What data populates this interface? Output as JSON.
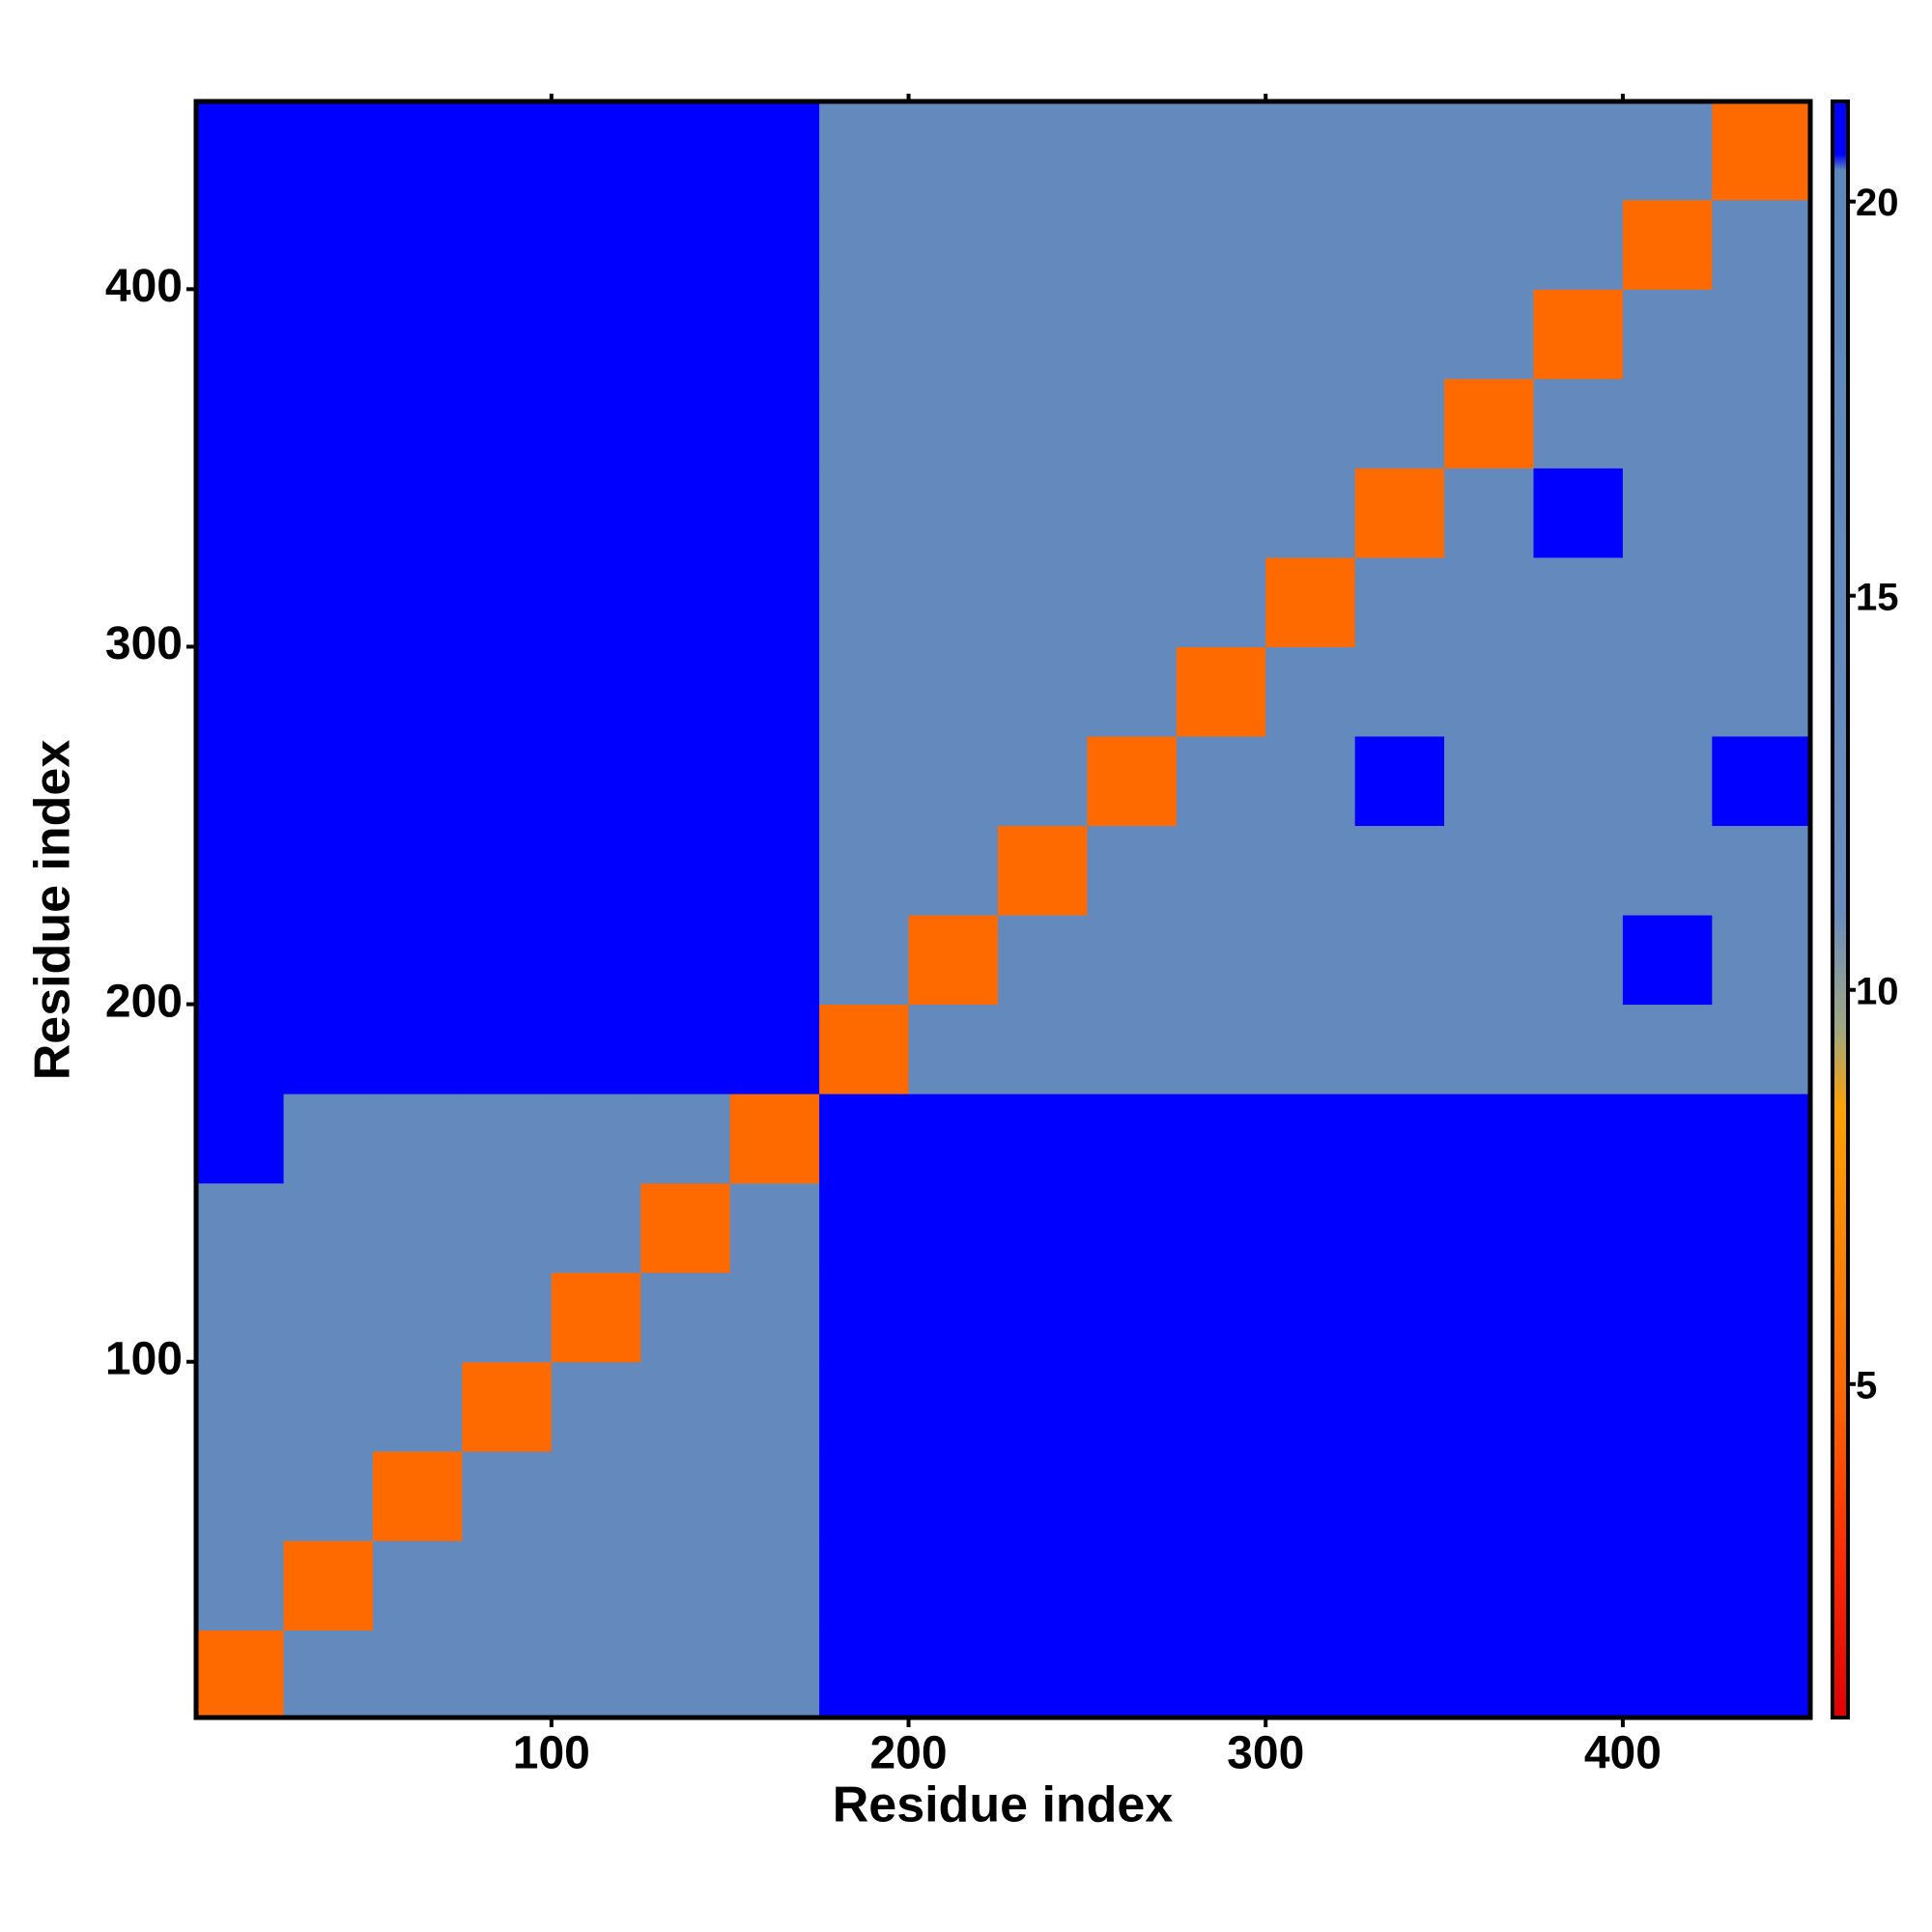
{
  "chart_data": {
    "type": "heatmap",
    "x_label": "Residue index",
    "y_label": "Residue index",
    "xbins": [
      0.5,
      25,
      50,
      75,
      100,
      125,
      150,
      175,
      200,
      225,
      250,
      275,
      300,
      325,
      350,
      375,
      400,
      425,
      452.5
    ],
    "ybins": [
      0.5,
      25,
      50,
      75,
      100,
      125,
      150,
      175,
      200,
      225,
      250,
      275,
      300,
      325,
      350,
      375,
      400,
      425,
      452.5
    ],
    "z": [
      [
        5,
        15,
        15,
        15,
        15,
        15,
        15,
        21,
        21,
        21,
        21,
        21,
        21,
        21,
        21,
        21,
        21,
        21
      ],
      [
        15,
        5,
        15,
        15,
        15,
        15,
        15,
        21,
        21,
        21,
        21,
        21,
        21,
        21,
        21,
        21,
        21,
        21
      ],
      [
        15,
        15,
        5,
        15,
        15,
        15,
        15,
        21,
        21,
        21,
        21,
        21,
        21,
        21,
        21,
        21,
        21,
        21
      ],
      [
        15,
        15,
        15,
        5,
        15,
        15,
        15,
        21,
        21,
        21,
        21,
        21,
        21,
        21,
        21,
        21,
        21,
        21
      ],
      [
        15,
        15,
        15,
        15,
        5,
        15,
        15,
        21,
        21,
        21,
        21,
        21,
        21,
        21,
        21,
        21,
        21,
        21
      ],
      [
        15,
        15,
        15,
        15,
        15,
        5,
        15,
        21,
        21,
        21,
        21,
        21,
        21,
        21,
        21,
        21,
        21,
        21
      ],
      [
        21,
        15,
        15,
        15,
        15,
        15,
        5,
        21,
        21,
        21,
        21,
        21,
        21,
        21,
        21,
        21,
        21,
        21
      ],
      [
        21,
        21,
        21,
        21,
        21,
        21,
        21,
        5,
        15,
        15,
        15,
        15,
        15,
        15,
        15,
        15,
        15,
        15
      ],
      [
        21,
        21,
        21,
        21,
        21,
        21,
        21,
        15,
        5,
        15,
        15,
        15,
        15,
        15,
        15,
        15,
        21,
        15
      ],
      [
        21,
        21,
        21,
        21,
        21,
        21,
        21,
        15,
        15,
        5,
        15,
        15,
        15,
        15,
        15,
        15,
        15,
        15
      ],
      [
        21,
        21,
        21,
        21,
        21,
        21,
        21,
        15,
        15,
        15,
        5,
        15,
        15,
        21,
        15,
        15,
        15,
        21
      ],
      [
        21,
        21,
        21,
        21,
        21,
        21,
        21,
        15,
        15,
        15,
        15,
        5,
        15,
        15,
        15,
        15,
        15,
        15
      ],
      [
        21,
        21,
        21,
        21,
        21,
        21,
        21,
        15,
        15,
        15,
        15,
        15,
        5,
        15,
        15,
        15,
        15,
        15
      ],
      [
        21,
        21,
        21,
        21,
        21,
        21,
        21,
        15,
        15,
        15,
        15,
        15,
        15,
        5,
        15,
        21,
        15,
        15
      ],
      [
        21,
        21,
        21,
        21,
        21,
        21,
        21,
        15,
        15,
        15,
        15,
        15,
        15,
        15,
        5,
        15,
        15,
        15
      ],
      [
        21,
        21,
        21,
        21,
        21,
        21,
        21,
        15,
        15,
        15,
        15,
        15,
        15,
        15,
        15,
        5,
        15,
        15
      ],
      [
        21,
        21,
        21,
        21,
        21,
        21,
        21,
        15,
        15,
        15,
        15,
        15,
        15,
        15,
        15,
        15,
        5,
        15
      ],
      [
        21,
        21,
        21,
        21,
        21,
        21,
        21,
        15,
        15,
        15,
        15,
        15,
        15,
        15,
        15,
        15,
        15,
        5
      ]
    ],
    "xlim": [
      0.5,
      452.5
    ],
    "ylim": [
      0.5,
      452.5
    ],
    "xticks": [
      100,
      200,
      300,
      400
    ],
    "yticks": [
      100,
      200,
      300,
      400
    ],
    "zlim": [
      0.77,
      21.27
    ],
    "zticks": [
      5,
      10,
      15,
      20
    ],
    "colorscale": [
      {
        "value": 0.77,
        "color": "#e00000"
      },
      {
        "value": 3,
        "color": "#ff3000"
      },
      {
        "value": 5,
        "color": "#ff6a00"
      },
      {
        "value": 8.5,
        "color": "#ffa000"
      },
      {
        "value": 9.5,
        "color": "#a0a880"
      },
      {
        "value": 11,
        "color": "#6a8cbf"
      },
      {
        "value": 20.4,
        "color": "#5b87bb"
      },
      {
        "value": 20.6,
        "color": "#0000ff"
      },
      {
        "value": 21.27,
        "color": "#0000ff"
      }
    ]
  }
}
